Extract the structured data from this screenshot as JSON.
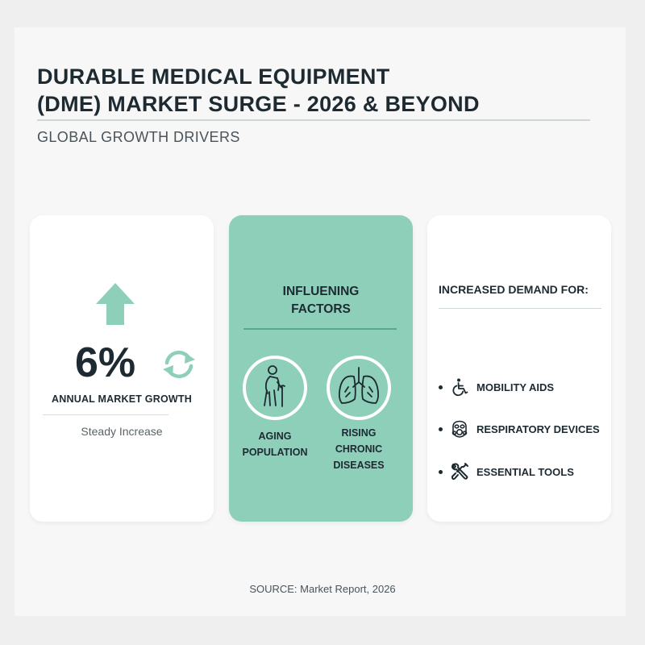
{
  "header": {
    "title_line1": "DURABLE MEDICAL EQUIPMENT",
    "title_line2": "(DME) MARKET SURGE - 2026 & BEYOND",
    "subtitle": "GLOBAL GROWTH DRIVERS"
  },
  "growth_card": {
    "value": "6%",
    "label": "ANNUAL MARKET GROWTH",
    "note": "Steady Increase",
    "icons": [
      "up-arrow-icon",
      "cycle-arrows-icon"
    ]
  },
  "factors_card": {
    "title_line1": "INFLUENING",
    "title_line2": "FACTORS",
    "factors": [
      {
        "icon": "elderly-person-icon",
        "line1": "AGING",
        "line2": "POPULATION",
        "line3": ""
      },
      {
        "icon": "lungs-icon",
        "line1": "RISING",
        "line2": "CHRONIC",
        "line3": "DISEASES"
      }
    ]
  },
  "demand_card": {
    "title": "INCREASED DEMAND FOR:",
    "items": [
      {
        "icon": "wheelchair-icon",
        "label": "MOBILITY AIDS"
      },
      {
        "icon": "respirator-mask-icon",
        "label": "RESPIRATORY DEVICES"
      },
      {
        "icon": "wrench-screwdriver-icon",
        "label": "ESSENTIAL TOOLS"
      }
    ]
  },
  "source": "SOURCE: Market Report, 2026",
  "colors": {
    "accent_green": "#8ecfb9",
    "dark_text": "#1d2a31",
    "page_bg": "#f7f7f7"
  }
}
